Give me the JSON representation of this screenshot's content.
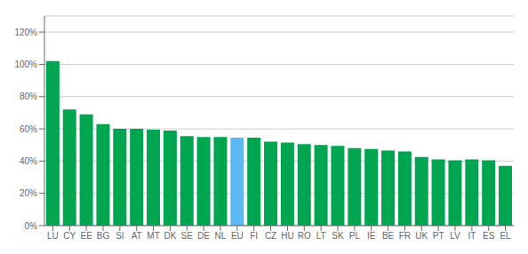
{
  "chart_data": {
    "type": "bar",
    "categories": [
      "LU",
      "CY",
      "EE",
      "BG",
      "SI",
      "AT",
      "MT",
      "DK",
      "SE",
      "DE",
      "NL",
      "EU",
      "FI",
      "CZ",
      "HU",
      "RO",
      "LT",
      "SK",
      "PL",
      "IE",
      "BE",
      "FR",
      "UK",
      "PT",
      "LV",
      "IT",
      "ES",
      "EL"
    ],
    "values": [
      1.02,
      0.72,
      0.69,
      0.63,
      0.6,
      0.6,
      0.595,
      0.59,
      0.555,
      0.55,
      0.55,
      0.545,
      0.545,
      0.52,
      0.515,
      0.505,
      0.5,
      0.495,
      0.48,
      0.475,
      0.465,
      0.46,
      0.425,
      0.41,
      0.405,
      0.41,
      0.405,
      0.37
    ],
    "colors": [
      "#00A550",
      "#00A550",
      "#00A550",
      "#00A550",
      "#00A550",
      "#00A550",
      "#00A550",
      "#00A550",
      "#00A550",
      "#00A550",
      "#00A550",
      "#5BB8F5",
      "#00A550",
      "#00A550",
      "#00A550",
      "#00A550",
      "#00A550",
      "#00A550",
      "#00A550",
      "#00A550",
      "#00A550",
      "#00A550",
      "#00A550",
      "#00A550",
      "#00A550",
      "#00A550",
      "#00A550",
      "#00A550"
    ],
    "ylim": [
      0,
      1.3
    ],
    "yticks": [
      {
        "value": 0,
        "label": "0%"
      },
      {
        "value": 0.2,
        "label": "20%"
      },
      {
        "value": 0.4,
        "label": "40%"
      },
      {
        "value": 0.6,
        "label": "60%"
      },
      {
        "value": 0.8,
        "label": "80%"
      },
      {
        "value": 1.0,
        "label": "100%"
      },
      {
        "value": 1.2,
        "label": "120%"
      }
    ],
    "grid": true
  }
}
